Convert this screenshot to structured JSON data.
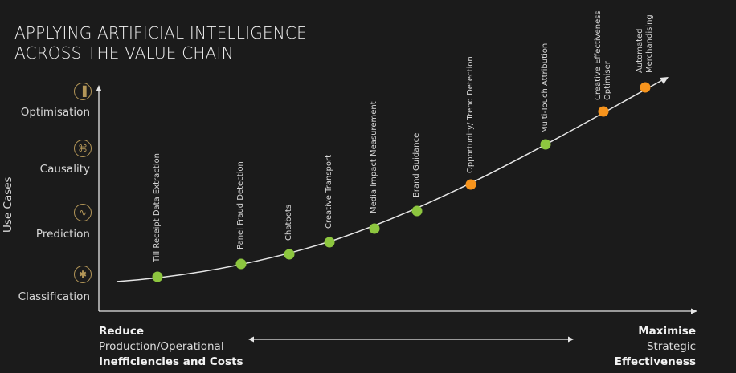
{
  "title": {
    "line1": "APPLYING ARTIFICIAL INTELLIGENCE",
    "line2": "ACROSS THE VALUE CHAIN"
  },
  "y_axis": {
    "label": "Use Cases",
    "levels": [
      {
        "label": "Optimisation",
        "icon": "bar-chart-icon"
      },
      {
        "label": "Causality",
        "icon": "network-nodes-icon"
      },
      {
        "label": "Prediction",
        "icon": "sine-curve-icon"
      },
      {
        "label": "Classification",
        "icon": "cluster-icon"
      }
    ]
  },
  "colors": {
    "background": "#1b1b1b",
    "current": "#8dc63f",
    "future": "#f7941d",
    "icon": "#b39658"
  },
  "points": [
    {
      "label": "Till Receipt Data Extraction",
      "status": "current"
    },
    {
      "label": "Panel Fraud Detection",
      "status": "current"
    },
    {
      "label": "Chatbots",
      "status": "current"
    },
    {
      "label": "Creative Transport",
      "status": "current"
    },
    {
      "label": "Media Impact Measurement",
      "status": "current"
    },
    {
      "label": "Brand Guidance",
      "status": "current"
    },
    {
      "label": "Opportunity/ Trend Detection",
      "status": "future"
    },
    {
      "label": "Multi-Touch Attribution",
      "status": "current"
    },
    {
      "label": "Creative Effectiveness",
      "label2": "Optimiser",
      "status": "future"
    },
    {
      "label": "Automated",
      "label2": "Merchandising",
      "status": "future"
    }
  ],
  "x_axis": {
    "left": {
      "line1": "Reduce",
      "line2": "Production/Operational",
      "line3": "Inefficiencies and Costs"
    },
    "right": {
      "line1": "Maximise",
      "line2": "Strategic",
      "line3": "Effectiveness"
    }
  }
}
